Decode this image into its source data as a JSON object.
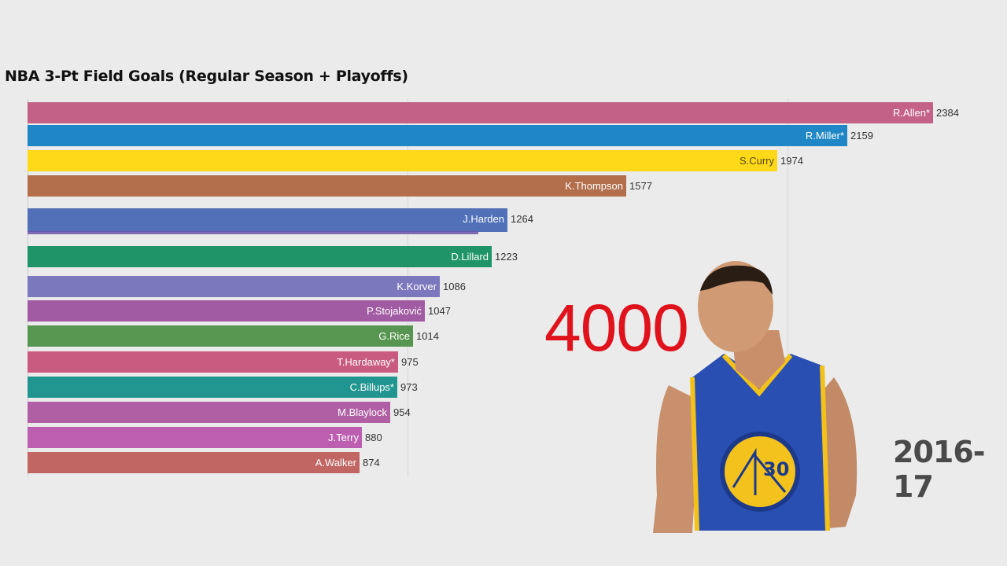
{
  "header": {
    "title": "NBA 3-Pt Field Goals (Regular Season + Playoffs)"
  },
  "overlay": {
    "milestone": "4000",
    "season": "2016-17",
    "player_image": "stephen-curry-warriors-30-photo"
  },
  "chart_data": {
    "type": "bar",
    "orientation": "horizontal",
    "title": "NBA 3-Pt Field Goals (Regular Season + Playoffs)",
    "subtitle": "2016-17",
    "xlabel": "",
    "ylabel": "",
    "grid": true,
    "xlim": [
      0,
      2500
    ],
    "categories": [
      "R.Allen*",
      "R.Miller*",
      "S.Curry",
      "K.Thompson",
      "J.Harden",
      "D.Lillard",
      "K.Korver",
      "P.Stojaković",
      "G.Rice",
      "T.Hardaway*",
      "C.Billups*",
      "M.Blaylock",
      "J.Terry",
      "A.Walker"
    ],
    "values": [
      2384,
      2159,
      1974,
      1577,
      1264,
      1223,
      1086,
      1047,
      1014,
      975,
      973,
      954,
      880,
      874
    ],
    "colors": [
      "#c46186",
      "#1f87c6",
      "#fdd919",
      "#b36f4c",
      "#5170b8",
      "#1e9468",
      "#7c78bd",
      "#a05ba2",
      "#569650",
      "#c95a80",
      "#21958f",
      "#b05fa5",
      "#bd5fb0",
      "#c16662"
    ],
    "annotations": [
      "4000",
      "2016-17"
    ]
  },
  "bars": [
    {
      "name": "R.Allen*",
      "value": "2384"
    },
    {
      "name": "R.Miller*",
      "value": "2159"
    },
    {
      "name": "S.Curry",
      "value": "1974"
    },
    {
      "name": "K.Thompson",
      "value": "1577"
    },
    {
      "name": "J.Harden",
      "value": "1264"
    },
    {
      "name": "D.Lillard",
      "value": "1223"
    },
    {
      "name": "K.Korver",
      "value": "1086"
    },
    {
      "name": "P.Stojaković",
      "value": "1047"
    },
    {
      "name": "G.Rice",
      "value": "1014"
    },
    {
      "name": "T.Hardaway*",
      "value": "975"
    },
    {
      "name": "C.Billups*",
      "value": "973"
    },
    {
      "name": "M.Blaylock",
      "value": "954"
    },
    {
      "name": "J.Terry",
      "value": "880"
    },
    {
      "name": "A.Walker",
      "value": "874"
    }
  ]
}
